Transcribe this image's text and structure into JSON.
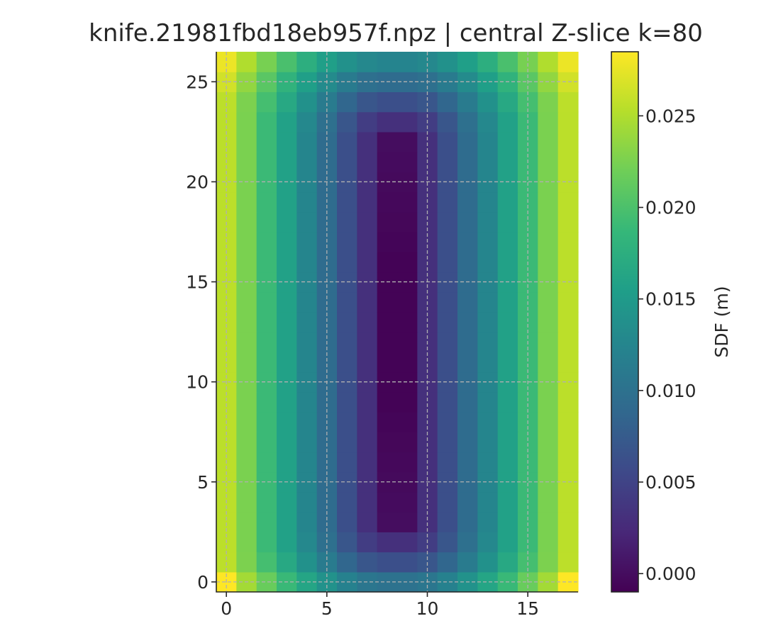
{
  "chart_data": {
    "type": "heatmap",
    "title": "knife.21981fbd18eb957f.npz | central Z-slice k=80",
    "xlabel": "",
    "ylabel": "",
    "x_ticks": [
      0,
      5,
      10,
      15
    ],
    "y_ticks": [
      0,
      5,
      10,
      15,
      20,
      25
    ],
    "xlim": [
      -0.5,
      17.5
    ],
    "ylim": [
      -0.5,
      26.5
    ],
    "grid": true,
    "colormap": "viridis",
    "colorbar": {
      "label": "SDF (m)",
      "range": [
        -0.001,
        0.0285
      ],
      "ticks": [
        0.0,
        0.005,
        0.01,
        0.015,
        0.02,
        0.025
      ],
      "tick_labels": [
        "0.000",
        "0.005",
        "0.010",
        "0.015",
        "0.020",
        "0.025"
      ]
    },
    "grid_size": {
      "cols": 18,
      "rows": 27
    },
    "column_profile": [
      0.0255,
      0.0225,
      0.019,
      0.0158,
      0.0125,
      0.0093,
      0.0062,
      0.0031,
      0.0,
      0.0,
      0.0031,
      0.0062,
      0.0093,
      0.0125,
      0.0158,
      0.019,
      0.0225,
      0.0255
    ],
    "core_value_range": [
      -0.0008,
      0.0
    ],
    "core_rows": [
      3,
      22
    ],
    "bottom_edge_max": 0.0285
  }
}
